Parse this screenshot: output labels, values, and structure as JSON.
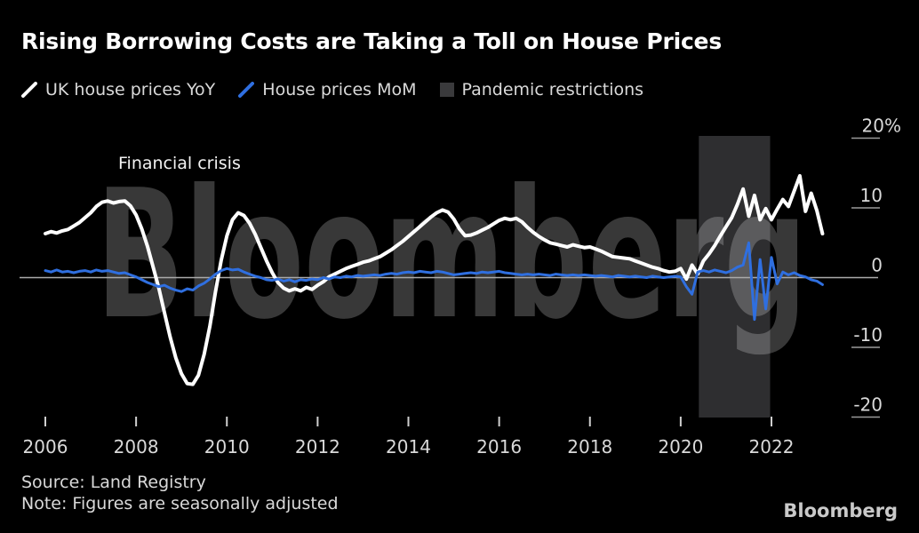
{
  "header": {
    "title": "Rising Borrowing Costs are Taking a Toll on House Prices",
    "legend": [
      {
        "label": "UK house prices YoY",
        "swatch": "slash",
        "color": "#ffffff"
      },
      {
        "label": "House prices MoM",
        "swatch": "slash",
        "color": "#2f6fe0"
      },
      {
        "label": "Pandemic restrictions",
        "swatch": "box",
        "color": "#3a3a3c"
      }
    ]
  },
  "annotation": {
    "financial_crisis": "Financial crisis"
  },
  "watermark": {
    "text": "Bloomberg",
    "color": "rgba(255,255,255,0.22)"
  },
  "chart_data": {
    "type": "line",
    "title": "Rising Borrowing Costs are Taking a Toll on House Prices",
    "xlabel": "",
    "ylabel": "%",
    "x_range": [
      2005.4,
      2023.6
    ],
    "ylim": [
      -20,
      20
    ],
    "grid": "zero-line-only",
    "legend_position": "top-left",
    "x_start": 2006.0,
    "x_step": 0.125,
    "x_ticks": [
      2006,
      2008,
      2010,
      2012,
      2014,
      2016,
      2018,
      2020,
      2022
    ],
    "y_ticks": [
      {
        "value": 20,
        "label": "20%"
      },
      {
        "value": 10,
        "label": "10"
      },
      {
        "value": 0,
        "label": "0"
      },
      {
        "value": -10,
        "label": "-10"
      },
      {
        "value": -20,
        "label": "-20"
      }
    ],
    "band": {
      "label": "Pandemic restrictions",
      "x0": 2020.4,
      "x1": 2021.97,
      "color": "#2e2e30"
    },
    "series": [
      {
        "name": "UK house prices YoY",
        "color": "#ffffff",
        "stroke_width": 4,
        "values": [
          6.3,
          6.6,
          6.4,
          6.7,
          6.9,
          7.4,
          7.9,
          8.6,
          9.3,
          10.2,
          10.8,
          11.0,
          10.7,
          10.9,
          11.0,
          10.3,
          9.0,
          7.0,
          4.5,
          1.5,
          -1.5,
          -5.0,
          -8.5,
          -11.5,
          -13.8,
          -15.2,
          -15.3,
          -14.0,
          -11.0,
          -7.0,
          -2.0,
          2.5,
          6.0,
          8.3,
          9.3,
          8.9,
          7.8,
          6.2,
          4.3,
          2.4,
          0.7,
          -0.7,
          -1.5,
          -1.9,
          -1.6,
          -1.9,
          -1.4,
          -1.7,
          -1.1,
          -0.6,
          0.1,
          0.5,
          0.9,
          1.3,
          1.6,
          1.9,
          2.2,
          2.4,
          2.7,
          3.0,
          3.5,
          4.0,
          4.6,
          5.2,
          5.9,
          6.6,
          7.3,
          8.0,
          8.7,
          9.3,
          9.7,
          9.4,
          8.4,
          7.0,
          6.0,
          6.1,
          6.4,
          6.8,
          7.2,
          7.7,
          8.2,
          8.5,
          8.3,
          8.5,
          8.0,
          7.2,
          6.5,
          5.9,
          5.4,
          5.0,
          4.8,
          4.6,
          4.4,
          4.7,
          4.5,
          4.3,
          4.4,
          4.1,
          3.8,
          3.4,
          3.0,
          2.9,
          2.8,
          2.7,
          2.4,
          2.1,
          1.8,
          1.5,
          1.3,
          1.0,
          0.8,
          0.9,
          1.3,
          -0.2,
          1.8,
          0.5,
          2.4,
          3.4,
          4.6,
          6.0,
          7.3,
          8.6,
          10.5,
          12.7,
          8.8,
          11.8,
          8.3,
          9.9,
          8.3,
          9.8,
          11.2,
          10.2,
          12.4,
          14.6,
          9.5,
          12.1,
          9.6,
          6.3
        ]
      },
      {
        "name": "House prices MoM",
        "color": "#2f6fe0",
        "stroke_width": 3,
        "values": [
          1.0,
          0.8,
          1.1,
          0.8,
          0.9,
          0.7,
          0.9,
          1.0,
          0.8,
          1.1,
          0.9,
          1.0,
          0.8,
          0.6,
          0.7,
          0.4,
          0.1,
          -0.3,
          -0.7,
          -1.0,
          -1.3,
          -1.1,
          -1.5,
          -1.8,
          -2.0,
          -1.6,
          -1.8,
          -1.2,
          -0.8,
          -0.2,
          0.5,
          1.0,
          1.3,
          1.1,
          1.2,
          0.8,
          0.5,
          0.2,
          0.0,
          -0.3,
          -0.4,
          -0.2,
          -0.5,
          -0.3,
          -0.6,
          -0.3,
          -0.4,
          -0.2,
          -0.3,
          0.0,
          -0.2,
          0.1,
          0.0,
          0.2,
          0.1,
          0.3,
          0.2,
          0.3,
          0.4,
          0.3,
          0.5,
          0.6,
          0.5,
          0.7,
          0.8,
          0.7,
          0.9,
          0.8,
          0.7,
          0.9,
          0.8,
          0.6,
          0.4,
          0.5,
          0.6,
          0.7,
          0.6,
          0.8,
          0.7,
          0.8,
          0.9,
          0.7,
          0.6,
          0.5,
          0.4,
          0.5,
          0.4,
          0.5,
          0.4,
          0.3,
          0.5,
          0.4,
          0.3,
          0.4,
          0.3,
          0.4,
          0.3,
          0.2,
          0.3,
          0.2,
          0.1,
          0.3,
          0.2,
          0.1,
          0.2,
          0.1,
          0.0,
          0.2,
          0.1,
          0.0,
          0.1,
          0.2,
          0.1,
          -1.3,
          -2.4,
          0.8,
          1.0,
          0.8,
          1.1,
          0.9,
          0.7,
          1.0,
          1.5,
          1.8,
          5.0,
          -6.0,
          2.6,
          -4.5,
          2.9,
          -0.9,
          0.8,
          0.4,
          0.7,
          0.3,
          0.1,
          -0.3,
          -0.5,
          -1.0
        ]
      }
    ]
  },
  "footer": {
    "source": "Source: Land Registry",
    "note": "Note: Figures are seasonally adjusted",
    "brand": "Bloomberg"
  }
}
